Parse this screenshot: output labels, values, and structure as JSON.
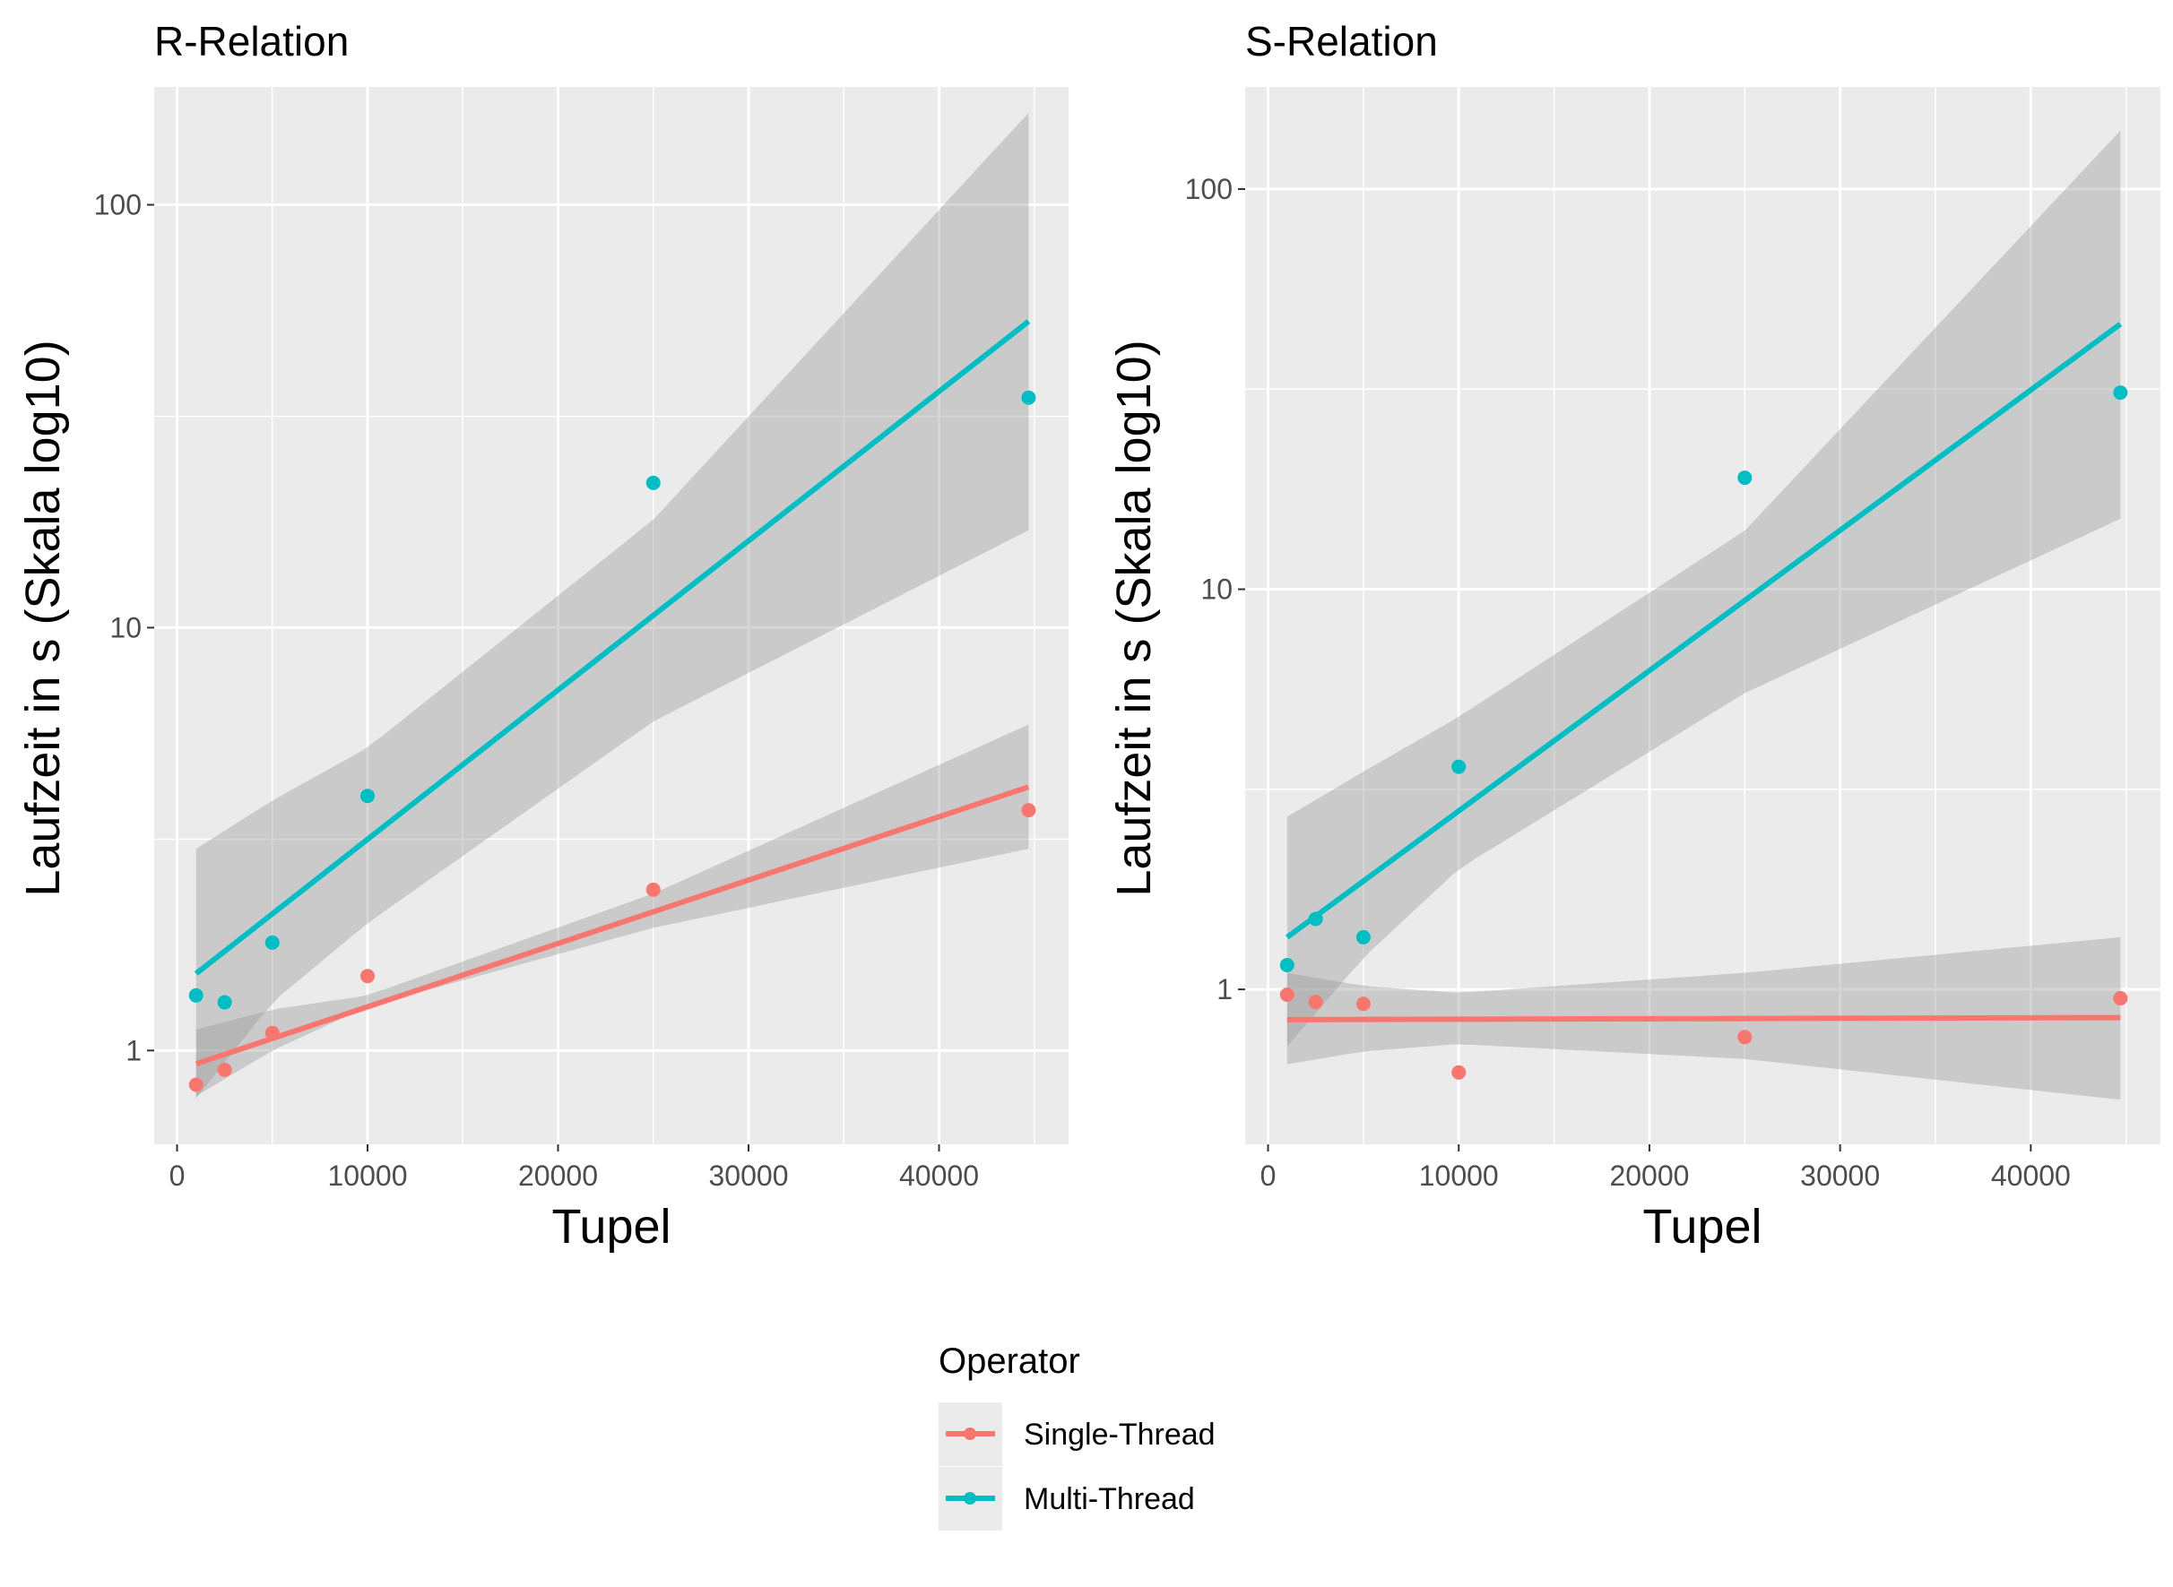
{
  "chart_data": [
    {
      "type": "scatter",
      "title": "R-Relation",
      "xlabel": "Tupel",
      "ylabel": "Laufzeit in s (Skala log10)",
      "y_scale": "log10",
      "x_ticks": [
        "0",
        "10000",
        "20000",
        "30000",
        "40000"
      ],
      "y_ticks": [
        "1",
        "10",
        "100"
      ],
      "xlim": [
        -1200,
        46800
      ],
      "ylim": [
        0.6,
        190
      ],
      "grid": true,
      "series": [
        {
          "name": "Single-Thread",
          "color": "#F8766D",
          "points": [
            {
              "x": 1000,
              "y": 0.83
            },
            {
              "x": 2500,
              "y": 0.9
            },
            {
              "x": 5000,
              "y": 1.1
            },
            {
              "x": 10000,
              "y": 1.5
            },
            {
              "x": 25000,
              "y": 2.4
            },
            {
              "x": 44700,
              "y": 3.7
            }
          ],
          "fit": {
            "x": [
              1000,
              44700
            ],
            "y": [
              0.93,
              4.2
            ]
          },
          "band": {
            "x": [
              1000,
              5000,
              10000,
              25000,
              44700
            ],
            "lower": [
              0.78,
              1.0,
              1.27,
              1.95,
              3.0
            ],
            "upper": [
              1.12,
              1.25,
              1.35,
              2.35,
              5.9
            ]
          }
        },
        {
          "name": "Multi-Thread",
          "color": "#00BFC4",
          "points": [
            {
              "x": 1000,
              "y": 1.35
            },
            {
              "x": 2500,
              "y": 1.3
            },
            {
              "x": 5000,
              "y": 1.8
            },
            {
              "x": 10000,
              "y": 4.0
            },
            {
              "x": 25000,
              "y": 22
            },
            {
              "x": 44700,
              "y": 35
            }
          ],
          "fit": {
            "x": [
              1000,
              44700
            ],
            "y": [
              1.52,
              53
            ]
          },
          "band": {
            "x": [
              1000,
              5000,
              10000,
              25000,
              44700
            ],
            "lower": [
              0.77,
              1.3,
              2.0,
              6.0,
              17
            ],
            "upper": [
              3.0,
              3.9,
              5.2,
              18,
              165
            ]
          }
        }
      ]
    },
    {
      "type": "scatter",
      "title": "S-Relation",
      "xlabel": "Tupel",
      "ylabel": "Laufzeit in s (Skala log10)",
      "y_scale": "log10",
      "x_ticks": [
        "0",
        "10000",
        "20000",
        "30000",
        "40000"
      ],
      "y_ticks": [
        "1",
        "10",
        "100"
      ],
      "xlim": [
        -1200,
        46800
      ],
      "ylim": [
        0.41,
        180
      ],
      "grid": true,
      "series": [
        {
          "name": "Single-Thread",
          "color": "#F8766D",
          "points": [
            {
              "x": 1000,
              "y": 0.97
            },
            {
              "x": 2500,
              "y": 0.93
            },
            {
              "x": 5000,
              "y": 0.92
            },
            {
              "x": 10000,
              "y": 0.62
            },
            {
              "x": 25000,
              "y": 0.76
            },
            {
              "x": 44700,
              "y": 0.95
            }
          ],
          "fit": {
            "x": [
              1000,
              44700
            ],
            "y": [
              0.84,
              0.85
            ]
          },
          "band": {
            "x": [
              1000,
              5000,
              10000,
              25000,
              44700
            ],
            "lower": [
              0.65,
              0.7,
              0.73,
              0.67,
              0.53
            ],
            "upper": [
              1.1,
              1.02,
              0.98,
              1.1,
              1.35
            ]
          }
        },
        {
          "name": "Multi-Thread",
          "color": "#00BFC4",
          "points": [
            {
              "x": 1000,
              "y": 1.15
            },
            {
              "x": 2500,
              "y": 1.5
            },
            {
              "x": 5000,
              "y": 1.35
            },
            {
              "x": 10000,
              "y": 3.6
            },
            {
              "x": 25000,
              "y": 19
            },
            {
              "x": 44700,
              "y": 31
            }
          ],
          "fit": {
            "x": [
              1000,
              44700
            ],
            "y": [
              1.35,
              46
            ]
          },
          "band": {
            "x": [
              1000,
              5000,
              10000,
              25000,
              44700
            ],
            "lower": [
              0.72,
              1.2,
              2.0,
              5.5,
              15
            ],
            "upper": [
              2.7,
              3.5,
              4.8,
              14,
              140
            ]
          }
        }
      ]
    }
  ],
  "legend": {
    "title": "Operator",
    "items": [
      {
        "label": "Single-Thread",
        "color": "#F8766D"
      },
      {
        "label": "Multi-Thread",
        "color": "#00BFC4"
      }
    ]
  },
  "colors": {
    "panel_background": "#EBEBEB",
    "grid_major": "#FFFFFF",
    "ribbon": "#999999"
  }
}
